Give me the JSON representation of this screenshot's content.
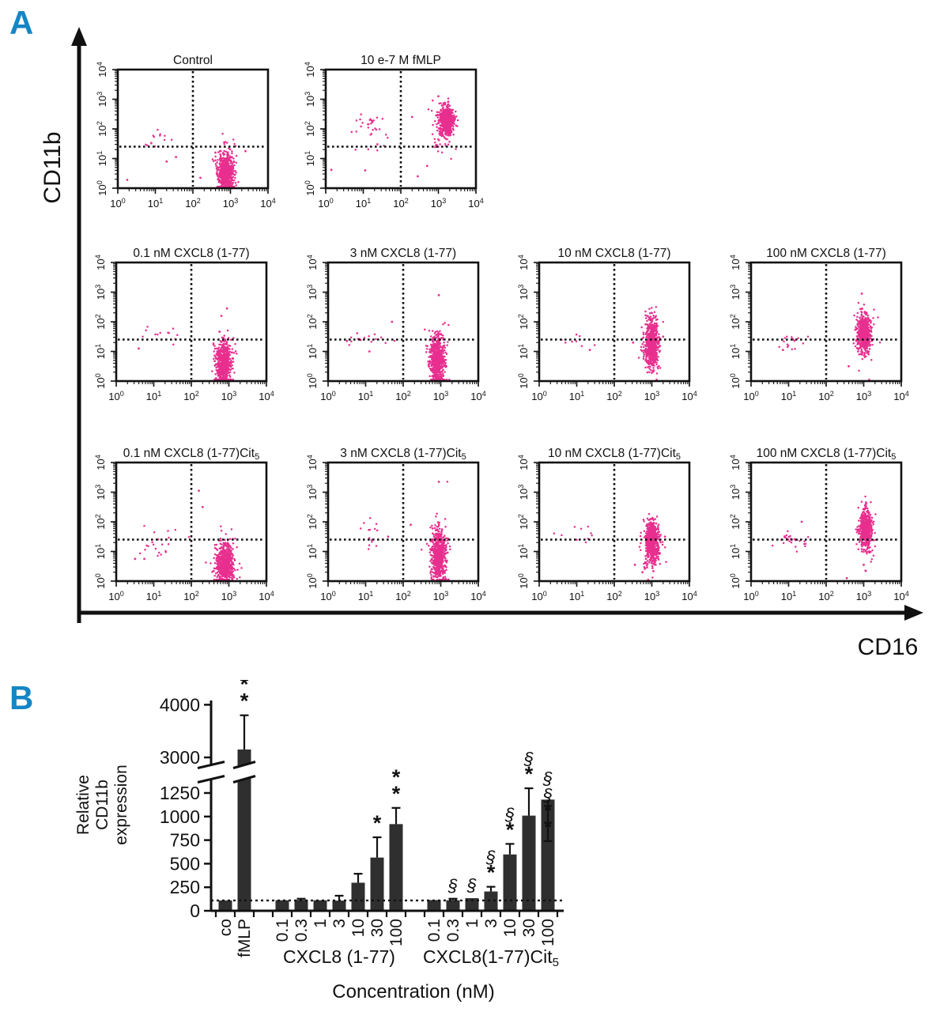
{
  "figure": {
    "panel_a": {
      "label": "A"
    },
    "panel_b": {
      "label": "B"
    }
  },
  "colors": {
    "accent": "#1585c5",
    "scatter": "#e82f8e",
    "bar": "#2f2f2f",
    "axis": "#111111"
  },
  "chart_data": [
    {
      "type": "scatter",
      "kind": "flow-cytometry-grid",
      "xlabel": "CD16",
      "ylabel": "CD11b",
      "axis": {
        "log_min": 0,
        "log_max": 4,
        "tick_base": "10",
        "tick_exponents": [
          "0",
          "1",
          "2",
          "3",
          "4"
        ]
      },
      "quadrant_lines": {
        "x_log": 2.0,
        "y_log": 1.4
      },
      "plots": [
        {
          "row": 0,
          "col": 0,
          "seed": 11,
          "title": "Control",
          "populations": [
            [
              2.87,
              0.5,
              0.1,
              0.33,
              560
            ],
            [
              2.87,
              0.62,
              0.17,
              0.5,
              70
            ],
            [
              1.05,
              1.62,
              0.22,
              0.18,
              13
            ]
          ],
          "outliers": [
            [
              0.25,
              0.28
            ],
            [
              1.3,
              0.9
            ],
            [
              2.2,
              0.35
            ],
            [
              2.6,
              1.2
            ],
            [
              3.4,
              1.25
            ],
            [
              1.55,
              1.05
            ]
          ]
        },
        {
          "row": 0,
          "col": 1,
          "seed": 22,
          "title": "10 e-7 M fMLP",
          "populations": [
            [
              3.22,
              2.3,
              0.09,
              0.22,
              520
            ],
            [
              3.18,
              2.2,
              0.15,
              0.35,
              80
            ],
            [
              3.05,
              1.6,
              0.14,
              0.28,
              22
            ],
            [
              1.15,
              2.2,
              0.22,
              0.18,
              26
            ],
            [
              1.35,
              1.5,
              0.3,
              0.25,
              9
            ]
          ],
          "outliers": [
            [
              0.15,
              0.62
            ],
            [
              1.05,
              0.6
            ],
            [
              2.45,
              0.4
            ],
            [
              2.7,
              0.75
            ],
            [
              3.0,
              3.1
            ],
            [
              2.3,
              2.4
            ]
          ]
        },
        {
          "row": 1,
          "col": 0,
          "seed": 33,
          "title": "0.1 nM CXCL8 (1-77)",
          "populations": [
            [
              2.86,
              0.55,
              0.1,
              0.35,
              560
            ],
            [
              2.86,
              0.85,
              0.15,
              0.5,
              60
            ],
            [
              1.25,
              1.5,
              0.2,
              0.2,
              12
            ]
          ],
          "outliers": [
            [
              2.95,
              2.45
            ],
            [
              2.8,
              2.2
            ],
            [
              0.6,
              1.1
            ]
          ]
        },
        {
          "row": 1,
          "col": 1,
          "seed": 44,
          "title": "3 nM CXCL8 (1-77)",
          "populations": [
            [
              2.9,
              0.6,
              0.1,
              0.4,
              560
            ],
            [
              2.9,
              0.95,
              0.15,
              0.5,
              70
            ],
            [
              1.05,
              1.42,
              0.25,
              0.12,
              16
            ]
          ],
          "outliers": [
            [
              2.95,
              2.9
            ],
            [
              1.7,
              2.0
            ],
            [
              0.5,
              1.35
            ],
            [
              1.1,
              1.0
            ]
          ]
        },
        {
          "row": 1,
          "col": 2,
          "seed": 55,
          "title": "10 nM CXCL8 (1-77)",
          "populations": [
            [
              3.0,
              1.25,
              0.09,
              0.4,
              550
            ],
            [
              2.97,
              1.2,
              0.14,
              0.55,
              70
            ],
            [
              0.95,
              1.38,
              0.25,
              0.1,
              8
            ]
          ],
          "outliers": [
            [
              1.35,
              1.05
            ],
            [
              2.5,
              1.3
            ],
            [
              3.3,
              1.5
            ]
          ]
        },
        {
          "row": 1,
          "col": 3,
          "seed": 66,
          "title": "100 nM CXCL8 (1-77)",
          "populations": [
            [
              3.02,
              1.62,
              0.08,
              0.28,
              520
            ],
            [
              3.0,
              1.5,
              0.13,
              0.45,
              80
            ],
            [
              1.1,
              1.35,
              0.22,
              0.18,
              16
            ]
          ],
          "outliers": [
            [
              2.95,
              2.95
            ],
            [
              2.6,
              0.5
            ],
            [
              2.85,
              1.0
            ],
            [
              0.85,
              1.05
            ]
          ]
        },
        {
          "row": 2,
          "col": 0,
          "seed": 77,
          "title": "0.1 nM CXCL8 (1-77)Cit",
          "title_sub": "5",
          "populations": [
            [
              2.9,
              0.55,
              0.11,
              0.35,
              560
            ],
            [
              2.9,
              0.8,
              0.16,
              0.5,
              60
            ],
            [
              1.1,
              1.35,
              0.25,
              0.28,
              22
            ]
          ],
          "outliers": [
            [
              2.2,
              3.05
            ],
            [
              2.3,
              2.5
            ],
            [
              0.5,
              0.75
            ],
            [
              0.75,
              0.75
            ]
          ]
        },
        {
          "row": 2,
          "col": 1,
          "seed": 88,
          "title": "3 nM CXCL8 (1-77)Cit",
          "title_sub": "5",
          "populations": [
            [
              2.95,
              0.85,
              0.09,
              0.45,
              560
            ],
            [
              2.92,
              0.95,
              0.15,
              0.55,
              70
            ],
            [
              1.1,
              1.5,
              0.1,
              0.25,
              14
            ]
          ],
          "outliers": [
            [
              2.95,
              3.35
            ],
            [
              1.6,
              1.5
            ],
            [
              2.2,
              1.9
            ]
          ]
        },
        {
          "row": 2,
          "col": 2,
          "seed": 99,
          "title": "10 nM CXCL8 (1-77)Cit",
          "title_sub": "5",
          "populations": [
            [
              3.0,
              1.35,
              0.09,
              0.35,
              550
            ],
            [
              2.97,
              1.15,
              0.14,
              0.5,
              80
            ],
            [
              1.1,
              1.5,
              0.25,
              0.2,
              10
            ]
          ],
          "outliers": [
            [
              2.55,
              0.55
            ],
            [
              2.75,
              0.3
            ],
            [
              3.35,
              1.5
            ]
          ]
        },
        {
          "row": 2,
          "col": 3,
          "seed": 110,
          "title": "100 nM CXCL8 (1-77)Cit",
          "title_sub": "5",
          "populations": [
            [
              3.05,
              1.75,
              0.08,
              0.3,
              520
            ],
            [
              3.02,
              1.55,
              0.13,
              0.5,
              70
            ],
            [
              1.05,
              1.45,
              0.22,
              0.15,
              20
            ],
            [
              1.1,
              1.15,
              0.25,
              0.12,
              6
            ]
          ],
          "outliers": [
            [
              2.55,
              0.1
            ],
            [
              3.0,
              0.55
            ],
            [
              1.35,
              2.0
            ]
          ]
        }
      ]
    },
    {
      "type": "bar",
      "xlabel": "Concentration (nM)",
      "ylabel_lines": [
        "Relative",
        "CD11b",
        "expression"
      ],
      "y_ticks_lower": [
        0,
        250,
        500,
        750,
        1000,
        1250
      ],
      "y_ticks_upper": [
        3000,
        4000
      ],
      "axis_break": true,
      "reference_line_value": 110,
      "bars": [
        {
          "label": "co",
          "slot": 0,
          "value": 110,
          "err": 0,
          "ann": []
        },
        {
          "label": "fMLP",
          "slot": 1,
          "value": 3150,
          "err": 650,
          "ann": [
            "*",
            "*"
          ]
        },
        {
          "label": "0.1",
          "slot": 3,
          "value": 112,
          "err": 0,
          "ann": []
        },
        {
          "label": "0.3",
          "slot": 4,
          "value": 116,
          "err": 12,
          "ann": []
        },
        {
          "label": "1",
          "slot": 5,
          "value": 112,
          "err": 0,
          "ann": []
        },
        {
          "label": "3",
          "slot": 6,
          "value": 108,
          "err": 52,
          "ann": []
        },
        {
          "label": "10",
          "slot": 7,
          "value": 298,
          "err": 95,
          "ann": []
        },
        {
          "label": "30",
          "slot": 8,
          "value": 565,
          "err": 215,
          "ann": [
            "*"
          ]
        },
        {
          "label": "100",
          "slot": 9,
          "value": 920,
          "err": 172,
          "ann": [
            "*",
            "*"
          ]
        },
        {
          "label": "0.1",
          "slot": 11,
          "value": 114,
          "err": 0,
          "ann": []
        },
        {
          "label": "0.3",
          "slot": 12,
          "value": 112,
          "err": 16,
          "ann": [
            "§"
          ]
        },
        {
          "label": "1",
          "slot": 13,
          "value": 134,
          "err": 0,
          "ann": [
            "§"
          ]
        },
        {
          "label": "3",
          "slot": 14,
          "value": 205,
          "err": 50,
          "ann": [
            "*",
            "§"
          ]
        },
        {
          "label": "10",
          "slot": 15,
          "value": 598,
          "err": 112,
          "ann": [
            "*",
            "§"
          ]
        },
        {
          "label": "30",
          "slot": 16,
          "value": 1010,
          "err": 290,
          "ann": [
            "*",
            "§"
          ]
        },
        {
          "label": "100",
          "slot": 17,
          "value": 1180,
          "err": 230,
          "ann": [
            "*",
            "*",
            "§",
            "§"
          ]
        }
      ],
      "groups": [
        {
          "label": "CXCL8 (1-77)",
          "label_sub": "",
          "from": 2,
          "to": 8
        },
        {
          "label": "CXCL8(1-77)Cit",
          "label_sub": "5",
          "from": 9,
          "to": 15
        }
      ]
    }
  ]
}
